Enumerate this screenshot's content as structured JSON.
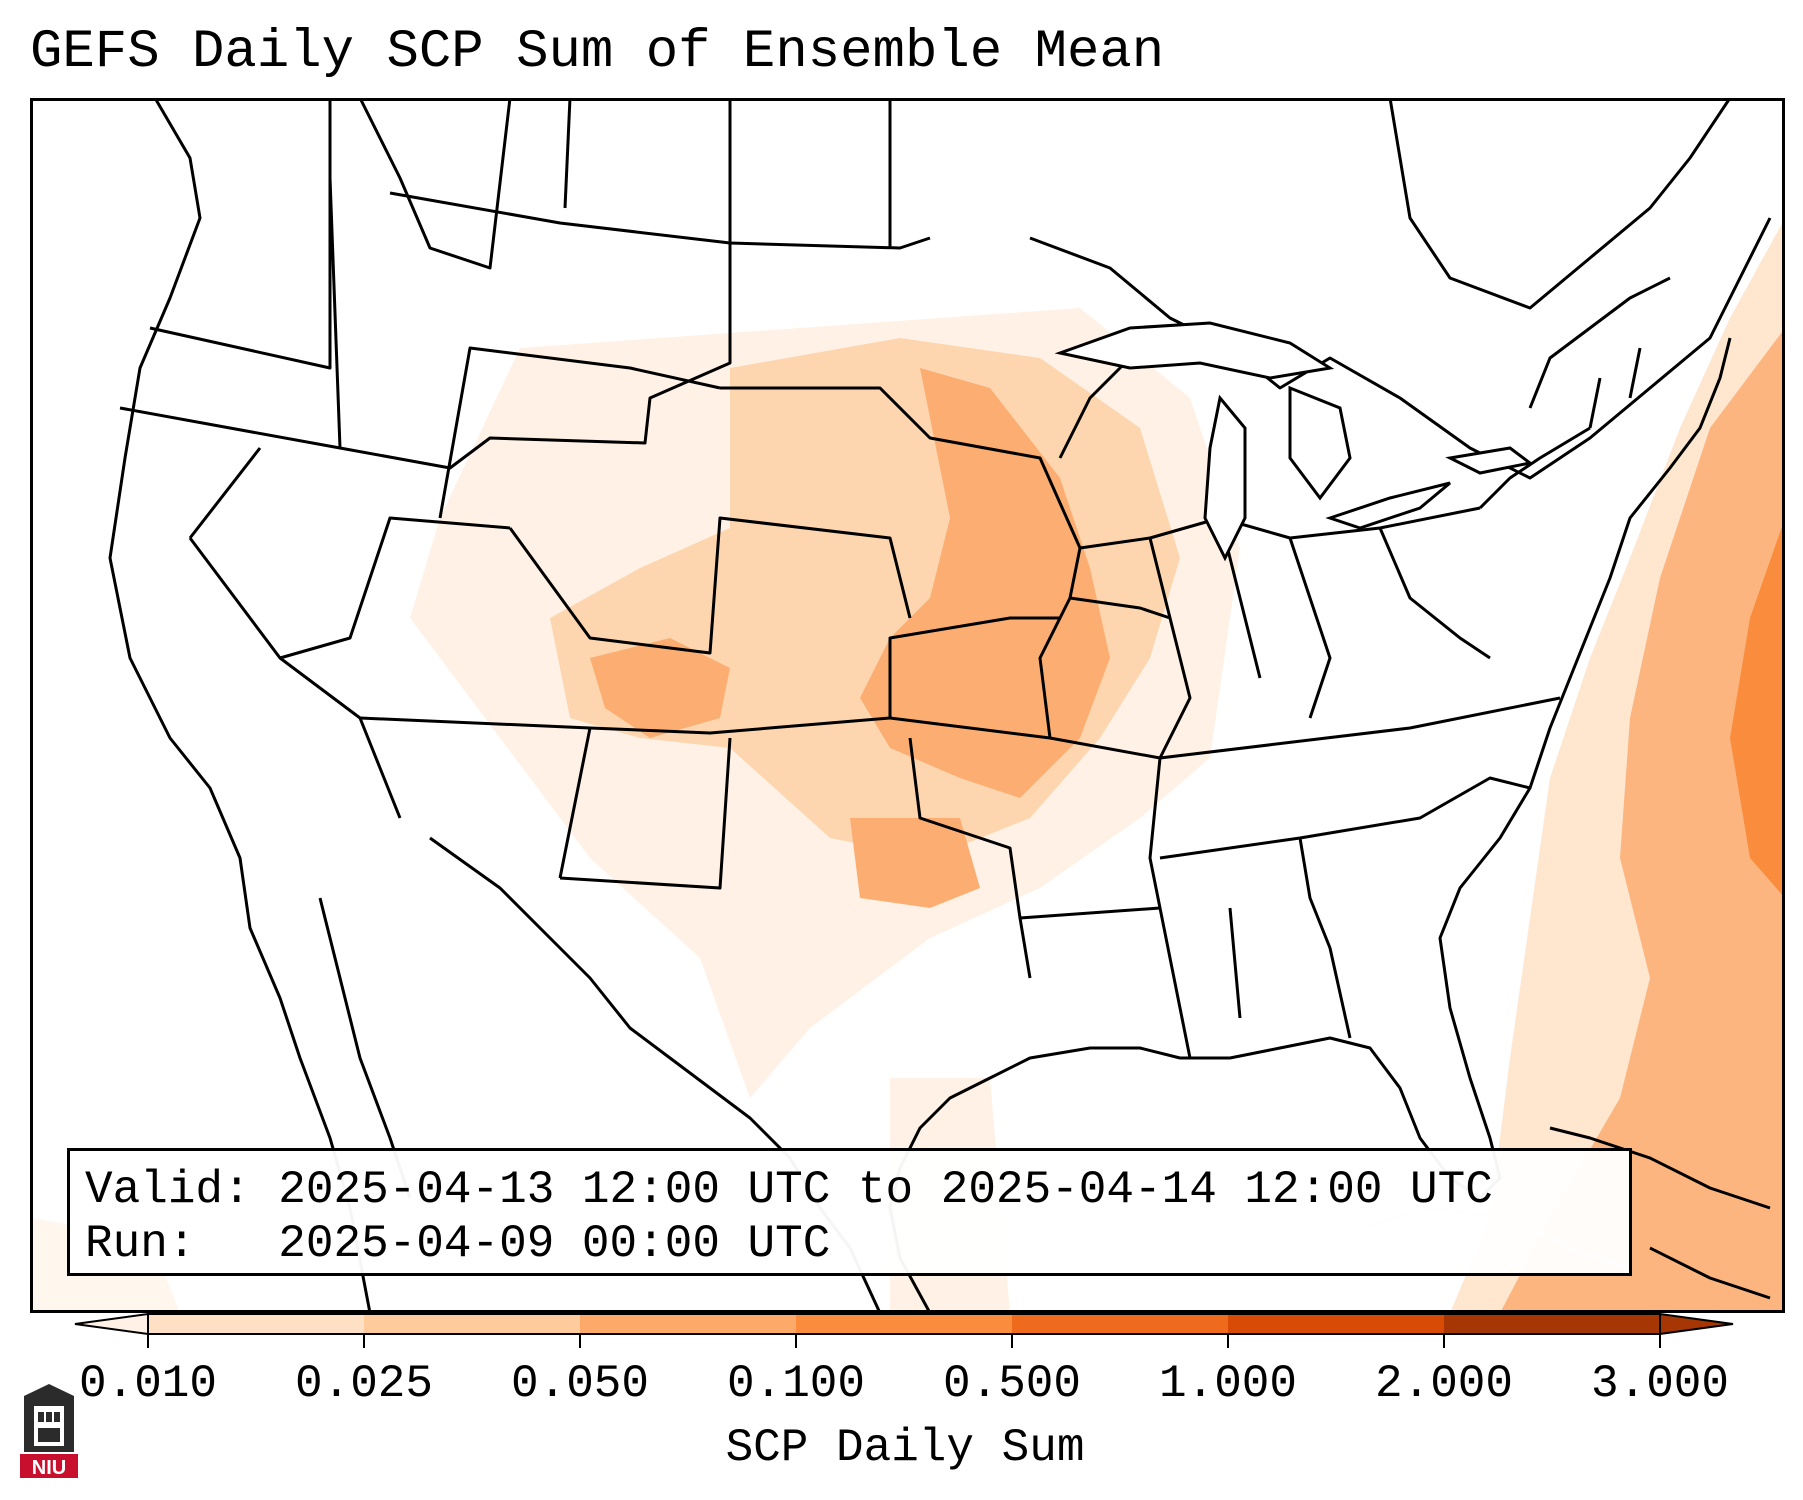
{
  "title": "GEFS Daily SCP Sum of Ensemble Mean",
  "info": {
    "valid_label": "Valid:",
    "valid_value": "2025-04-13 12:00 UTC to 2025-04-14 12:00 UTC",
    "run_label": "Run:",
    "run_value": "2025-04-09 00:00 UTC"
  },
  "colorbar": {
    "label": "SCP Daily Sum",
    "ticks": [
      "0.010",
      "0.025",
      "0.050",
      "0.100",
      "0.500",
      "1.000",
      "2.000",
      "3.000"
    ],
    "colors": [
      "#fff1e5",
      "#fee0c4",
      "#fdcb9c",
      "#fca96a",
      "#f98c3d",
      "#ee6b1d",
      "#d84b07",
      "#a63603"
    ],
    "extend": "both"
  },
  "logo": {
    "text": "NIU",
    "colors": {
      "shield": "#2b2b2b",
      "banner": "#c8102e"
    }
  },
  "map": {
    "projection": "Lambert conformal, contiguous United States",
    "borders": [
      "coastlines",
      "country borders",
      "state borders"
    ],
    "shading_regions": [
      "Great Plains",
      "Upper Midwest",
      "Mid-Mississippi Valley",
      "Western Atlantic"
    ]
  }
}
